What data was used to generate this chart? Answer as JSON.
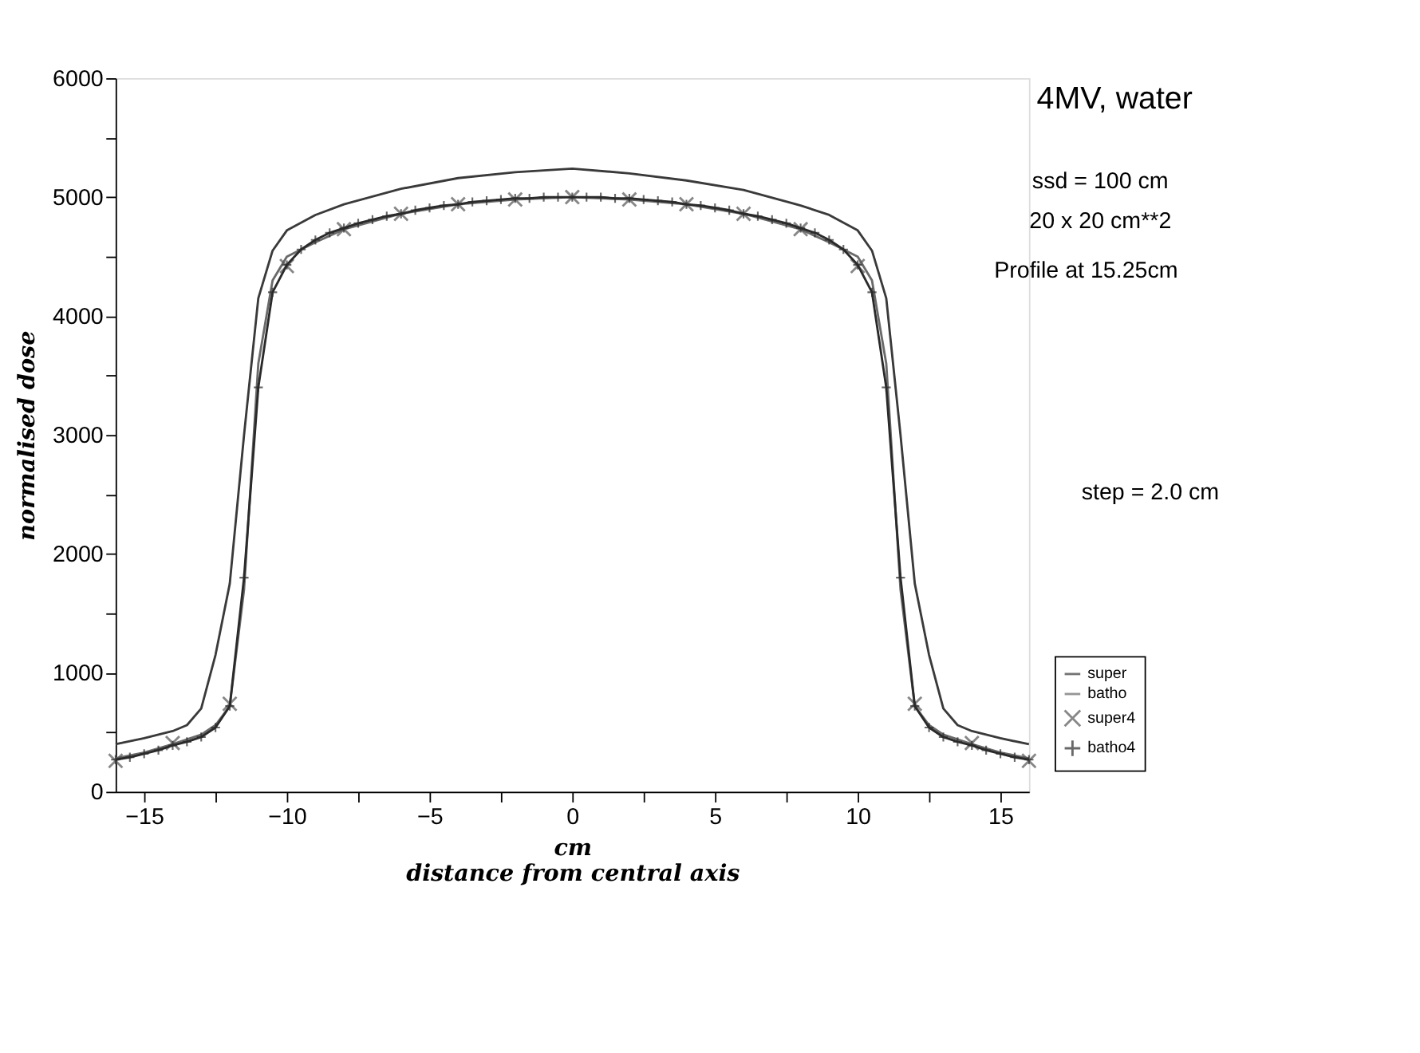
{
  "chart_data": {
    "type": "line",
    "xlabel": "cm\ndistance from central axis",
    "ylabel": "normalised dose",
    "xlim": [
      -16,
      16
    ],
    "ylim": [
      0,
      6000
    ],
    "xticks": [
      -15,
      {
        "value": -12.5,
        "label": null
      },
      -10,
      {
        "value": -7.5,
        "label": null
      },
      -5,
      {
        "value": -2.5,
        "label": null
      },
      0,
      {
        "value": 2.5,
        "label": null
      },
      5,
      {
        "value": 7.5,
        "label": null
      },
      10,
      {
        "value": 12.5,
        "label": null
      },
      15
    ],
    "yticks": [
      0,
      {
        "value": 500,
        "label": null
      },
      1000,
      {
        "value": 1500,
        "label": null
      },
      2000,
      {
        "value": 2500,
        "label": null
      },
      3000,
      {
        "value": 3500,
        "label": null
      },
      4000,
      {
        "value": 4500,
        "label": null
      },
      5000,
      {
        "value": 5500,
        "label": null
      },
      6000
    ],
    "grid": false,
    "legend": "bottom right",
    "annotations": [
      "4MV, water",
      "ssd = 100 cm",
      "20 x 20 cm**2",
      "Profile at 15.25cm",
      "step = 2.0 cm"
    ],
    "series": [
      {
        "name": "super",
        "color": "#3a3a3a",
        "marker": "none",
        "x": [
          -16,
          -15,
          -14,
          -13.5,
          -13,
          -12.5,
          -12,
          -11.5,
          -11,
          -10.5,
          -10,
          -9,
          -8,
          -6,
          -4,
          -2,
          0,
          2,
          4,
          6,
          8,
          9,
          10,
          10.5,
          11,
          11.5,
          12,
          12.5,
          13,
          13.5,
          14,
          15,
          16
        ],
        "values": [
          400,
          450,
          510,
          560,
          700,
          1150,
          1750,
          3000,
          4150,
          4550,
          4720,
          4850,
          4940,
          5070,
          5160,
          5210,
          5240,
          5200,
          5140,
          5060,
          4930,
          4850,
          4720,
          4550,
          4150,
          3000,
          1750,
          1150,
          700,
          560,
          510,
          450,
          400
        ]
      },
      {
        "name": "batho",
        "color": "#6a6a6a",
        "marker": "none",
        "x": [
          -16,
          -15,
          -14,
          -13.5,
          -13,
          -12.5,
          -12,
          -11.5,
          -11,
          -10.5,
          -10,
          -9,
          -8,
          -6,
          -4,
          -2,
          0,
          2,
          4,
          6,
          8,
          9,
          10,
          10.5,
          11,
          11.5,
          12,
          12.5,
          13,
          13.5,
          14,
          15,
          16
        ],
        "values": [
          280,
          330,
          400,
          440,
          480,
          560,
          720,
          1700,
          3600,
          4300,
          4500,
          4620,
          4730,
          4860,
          4940,
          4980,
          5000,
          4980,
          4940,
          4860,
          4730,
          4620,
          4500,
          4300,
          3600,
          1700,
          720,
          560,
          480,
          440,
          400,
          330,
          280
        ]
      },
      {
        "name": "super4",
        "type": "scatter",
        "color": "#555555",
        "marker": "cross",
        "x": [
          -16,
          -14,
          -12,
          -10,
          -8,
          -6,
          -4,
          -2,
          0,
          2,
          4,
          6,
          8,
          10,
          12,
          14,
          16
        ],
        "values": [
          260,
          410,
          740,
          4420,
          4730,
          4860,
          4940,
          4980,
          5000,
          4980,
          4940,
          4860,
          4730,
          4420,
          740,
          410,
          260
        ]
      },
      {
        "name": "batho4",
        "color": "#2a2a2a",
        "marker": "plus",
        "x": [
          -16,
          -15.5,
          -15,
          -14.5,
          -14,
          -13.5,
          -13,
          -12.5,
          -12,
          -11.5,
          -11,
          -10.5,
          -10,
          -9.5,
          -9,
          -8.5,
          -8,
          -7.5,
          -7,
          -6.5,
          -6,
          -5.5,
          -5,
          -4.5,
          -4,
          -3.5,
          -3,
          -2.5,
          -2,
          -1.5,
          -1,
          -0.5,
          0,
          0.5,
          1,
          1.5,
          2,
          2.5,
          3,
          3.5,
          4,
          4.5,
          5,
          5.5,
          6,
          6.5,
          7,
          7.5,
          8,
          8.5,
          9,
          9.5,
          10,
          10.5,
          11,
          11.5,
          12,
          12.5,
          13,
          13.5,
          14,
          14.5,
          15,
          15.5,
          16
        ],
        "values": [
          270,
          290,
          320,
          350,
          390,
          420,
          460,
          540,
          720,
          1800,
          3400,
          4200,
          4430,
          4560,
          4640,
          4700,
          4740,
          4780,
          4810,
          4840,
          4860,
          4890,
          4910,
          4930,
          4940,
          4960,
          4970,
          4980,
          4990,
          4990,
          5000,
          5000,
          5000,
          5000,
          5000,
          4990,
          4990,
          4980,
          4970,
          4960,
          4940,
          4930,
          4910,
          4890,
          4860,
          4840,
          4810,
          4780,
          4740,
          4700,
          4640,
          4560,
          4430,
          4200,
          3400,
          1800,
          720,
          540,
          460,
          420,
          390,
          350,
          320,
          290,
          270
        ]
      }
    ]
  }
}
